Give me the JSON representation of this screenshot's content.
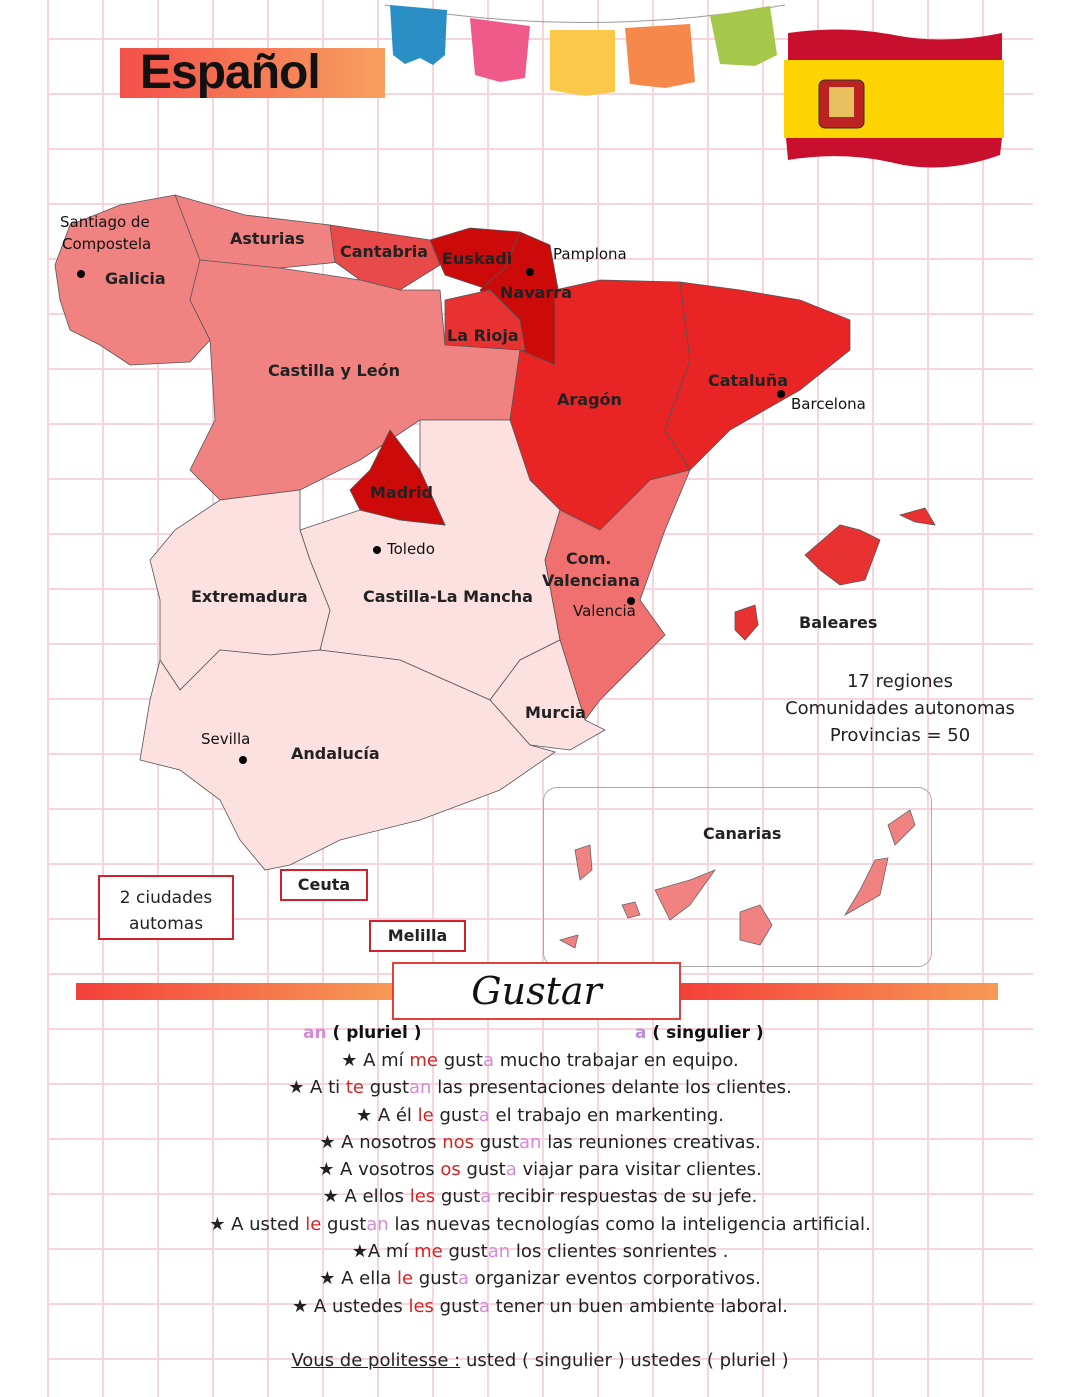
{
  "title": "Español",
  "colors": {
    "pronoun": "#d42424",
    "ending": "#d88ad8",
    "accent": "#f4504a"
  },
  "map": {
    "regions": [
      {
        "name": "Galicia",
        "color": "#f08282"
      },
      {
        "name": "Asturias",
        "color": "#f08282"
      },
      {
        "name": "Cantabria",
        "color": "#e84a4a"
      },
      {
        "name": "Euskadi",
        "color": "#cc0a0a"
      },
      {
        "name": "Navarra",
        "color": "#cc0a0a"
      },
      {
        "name": "La Rioja",
        "color": "#e83232"
      },
      {
        "name": "Castilla y León",
        "color": "#f08282"
      },
      {
        "name": "Aragón",
        "color": "#e82424"
      },
      {
        "name": "Cataluña",
        "color": "#e82424"
      },
      {
        "name": "Madrid",
        "color": "#cc0a0a"
      },
      {
        "name": "Castilla-La Mancha",
        "color": "#fde0e0"
      },
      {
        "name": "Extremadura",
        "color": "#fde0e0"
      },
      {
        "name": "Com. Valenciana",
        "color": "#f07070"
      },
      {
        "name": "Murcia",
        "color": "#fde0e0"
      },
      {
        "name": "Andalucía",
        "color": "#fde0e0"
      },
      {
        "name": "Baleares",
        "color": "#e83232"
      },
      {
        "name": "Canarias",
        "color": "#f08282"
      }
    ],
    "labels": {
      "galicia": "Galicia",
      "asturias": "Asturias",
      "cantabria": "Cantabria",
      "euskadi": "Euskadi",
      "navarra": "Navarra",
      "rioja": "La Rioja",
      "cyl": "Castilla y León",
      "aragon": "Aragón",
      "cataluna": "Cataluña",
      "madrid": "Madrid",
      "clm": "Castilla-La Mancha",
      "extremadura": "Extremadura",
      "valenciana1": "Com.",
      "valenciana2": "Valenciana",
      "murcia": "Murcia",
      "andalucia": "Andalucía",
      "baleares": "Baleares",
      "canarias": "Canarias"
    },
    "cities": {
      "santiago1": "Santiago de",
      "santiago2": "Compostela",
      "pamplona": "Pamplona",
      "barcelona": "Barcelona",
      "toledo": "Toledo",
      "valencia": "Valencia",
      "sevilla": "Sevilla"
    },
    "ceuta": "Ceuta",
    "melilla": "Melilla"
  },
  "info": {
    "line1": "17 regiones",
    "line2": "Comunidades autonomas",
    "line3": "Provincias = 50"
  },
  "ciudades": {
    "line1": "2 ciudades",
    "line2": "automas"
  },
  "gustar": {
    "heading": "Gustar",
    "plural_ending": "an",
    "plural_label": "( pluriel )",
    "singular_ending": "a",
    "singular_label": "( singulier )",
    "sentences": [
      [
        "★  A mí ",
        "me",
        " gust",
        "a",
        " mucho trabajar en equipo."
      ],
      [
        "★ A ti ",
        "te",
        " gust",
        "an",
        " las presentaciones delante los clientes."
      ],
      [
        "★ A él ",
        "le",
        " gust",
        "a",
        " el trabajo en markenting."
      ],
      [
        "★ A nosotros ",
        "nos",
        " gust",
        "an",
        " las reuniones creativas."
      ],
      [
        "★ A vosotros ",
        "os",
        " gust",
        "a",
        " viajar para visitar clientes."
      ],
      [
        "★ A ellos ",
        "les",
        " gust",
        "a",
        " recibir respuestas de su jefe."
      ],
      [
        "★ A usted ",
        "le",
        " gust",
        "an",
        " las nuevas tecnologías como la inteligencia artificial."
      ],
      [
        "★A mí ",
        "me",
        " gust",
        "an",
        " los clientes sonrientes ."
      ],
      [
        "★ A ella ",
        "le",
        " gust",
        "a",
        " organizar eventos corporativos."
      ],
      [
        "★ A ustedes ",
        "les",
        " gust",
        "a",
        " tener un buen ambiente laboral."
      ]
    ],
    "footer_label": "Vous de politesse :",
    "footer_text": " usted ( singulier ) ustedes ( pluriel )"
  }
}
